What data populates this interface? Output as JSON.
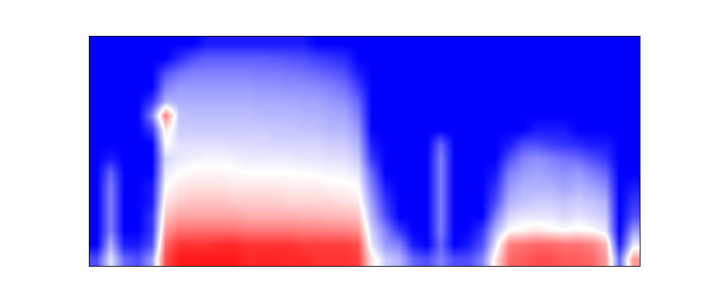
{
  "chart_data": {
    "type": "heatmap",
    "tick_labels": false,
    "zlim": [
      0,
      100
    ],
    "cells": [
      [
        15,
        45,
        20,
        15,
        30,
        85,
        95,
        95,
        95,
        95,
        95,
        92,
        93,
        93,
        92,
        92,
        90,
        90,
        90,
        88,
        55,
        40,
        35,
        20,
        15,
        25,
        15,
        15,
        25,
        55,
        80,
        82,
        85,
        85,
        82,
        82,
        80,
        70,
        20,
        70
      ],
      [
        0,
        35,
        5,
        5,
        15,
        80,
        90,
        90,
        90,
        92,
        92,
        90,
        90,
        90,
        90,
        88,
        88,
        88,
        88,
        85,
        45,
        30,
        25,
        5,
        0,
        20,
        0,
        5,
        15,
        45,
        75,
        78,
        80,
        80,
        78,
        78,
        75,
        65,
        5,
        45
      ],
      [
        0,
        25,
        0,
        0,
        10,
        70,
        78,
        78,
        78,
        78,
        78,
        76,
        76,
        76,
        76,
        75,
        75,
        74,
        74,
        72,
        40,
        25,
        10,
        0,
        0,
        25,
        0,
        0,
        10,
        35,
        50,
        52,
        55,
        52,
        50,
        52,
        50,
        45,
        0,
        30
      ],
      [
        0,
        25,
        0,
        0,
        10,
        62,
        68,
        68,
        68,
        68,
        68,
        66,
        66,
        66,
        66,
        65,
        65,
        64,
        64,
        62,
        35,
        15,
        0,
        0,
        0,
        25,
        0,
        0,
        0,
        25,
        42,
        45,
        45,
        45,
        42,
        45,
        42,
        40,
        0,
        15
      ],
      [
        0,
        25,
        0,
        0,
        5,
        55,
        60,
        62,
        62,
        62,
        60,
        60,
        60,
        60,
        58,
        58,
        58,
        58,
        56,
        55,
        30,
        10,
        0,
        0,
        0,
        25,
        0,
        0,
        0,
        15,
        35,
        38,
        40,
        40,
        38,
        40,
        38,
        35,
        0,
        10
      ],
      [
        0,
        25,
        0,
        0,
        5,
        50,
        55,
        56,
        56,
        56,
        55,
        55,
        55,
        55,
        54,
        54,
        54,
        52,
        52,
        50,
        25,
        5,
        0,
        0,
        0,
        25,
        0,
        0,
        0,
        10,
        30,
        35,
        35,
        35,
        32,
        35,
        32,
        28,
        0,
        5
      ],
      [
        0,
        20,
        0,
        0,
        0,
        46,
        50,
        52,
        52,
        52,
        51,
        50,
        50,
        50,
        50,
        50,
        49,
        48,
        48,
        45,
        20,
        0,
        0,
        0,
        0,
        25,
        0,
        0,
        0,
        5,
        25,
        30,
        32,
        30,
        28,
        30,
        25,
        20,
        0,
        0
      ],
      [
        0,
        5,
        0,
        0,
        0,
        42,
        46,
        47,
        48,
        48,
        47,
        46,
        46,
        46,
        46,
        45,
        45,
        44,
        44,
        40,
        10,
        0,
        0,
        0,
        0,
        25,
        0,
        0,
        0,
        0,
        15,
        25,
        28,
        25,
        22,
        20,
        15,
        10,
        0,
        0
      ],
      [
        0,
        0,
        0,
        0,
        0,
        50,
        44,
        44,
        44,
        44,
        43,
        43,
        43,
        42,
        42,
        42,
        42,
        40,
        40,
        35,
        5,
        0,
        0,
        0,
        0,
        20,
        0,
        0,
        0,
        0,
        5,
        15,
        15,
        12,
        10,
        8,
        5,
        5,
        0,
        0
      ],
      [
        0,
        0,
        0,
        0,
        10,
        55,
        40,
        40,
        40,
        40,
        40,
        40,
        40,
        39,
        39,
        38,
        38,
        36,
        36,
        30,
        0,
        0,
        0,
        0,
        0,
        0,
        0,
        0,
        0,
        0,
        0,
        0,
        5,
        5,
        5,
        0,
        0,
        0,
        0,
        0
      ],
      [
        0,
        0,
        0,
        0,
        25,
        75,
        38,
        37,
        37,
        37,
        37,
        37,
        36,
        36,
        36,
        35,
        35,
        33,
        33,
        25,
        0,
        0,
        0,
        0,
        0,
        0,
        0,
        0,
        0,
        0,
        0,
        0,
        0,
        0,
        0,
        0,
        0,
        0,
        0,
        0
      ],
      [
        0,
        0,
        0,
        0,
        10,
        35,
        34,
        34,
        34,
        34,
        34,
        34,
        33,
        33,
        33,
        32,
        32,
        30,
        28,
        20,
        0,
        0,
        0,
        0,
        0,
        0,
        0,
        0,
        0,
        0,
        0,
        0,
        0,
        0,
        0,
        0,
        0,
        0,
        0,
        0
      ],
      [
        0,
        0,
        0,
        0,
        0,
        25,
        30,
        30,
        30,
        30,
        30,
        30,
        29,
        29,
        28,
        28,
        27,
        25,
        22,
        12,
        0,
        0,
        0,
        0,
        0,
        0,
        0,
        0,
        0,
        0,
        0,
        0,
        0,
        0,
        0,
        0,
        0,
        0,
        0,
        0
      ],
      [
        0,
        0,
        0,
        0,
        0,
        15,
        22,
        25,
        25,
        25,
        25,
        25,
        24,
        24,
        23,
        22,
        20,
        18,
        15,
        5,
        0,
        0,
        0,
        0,
        0,
        0,
        0,
        0,
        0,
        0,
        0,
        0,
        0,
        0,
        0,
        0,
        0,
        0,
        0,
        0
      ],
      [
        0,
        0,
        0,
        0,
        0,
        0,
        8,
        15,
        18,
        18,
        18,
        18,
        18,
        17,
        16,
        15,
        12,
        10,
        8,
        0,
        0,
        0,
        0,
        0,
        0,
        0,
        0,
        0,
        0,
        0,
        0,
        0,
        0,
        0,
        0,
        0,
        0,
        0,
        0,
        0
      ],
      [
        0,
        0,
        0,
        0,
        0,
        0,
        0,
        0,
        5,
        5,
        5,
        5,
        5,
        5,
        5,
        5,
        0,
        0,
        0,
        0,
        0,
        0,
        0,
        0,
        0,
        0,
        0,
        0,
        0,
        0,
        0,
        0,
        0,
        0,
        0,
        0,
        0,
        0,
        0,
        0
      ]
    ]
  }
}
